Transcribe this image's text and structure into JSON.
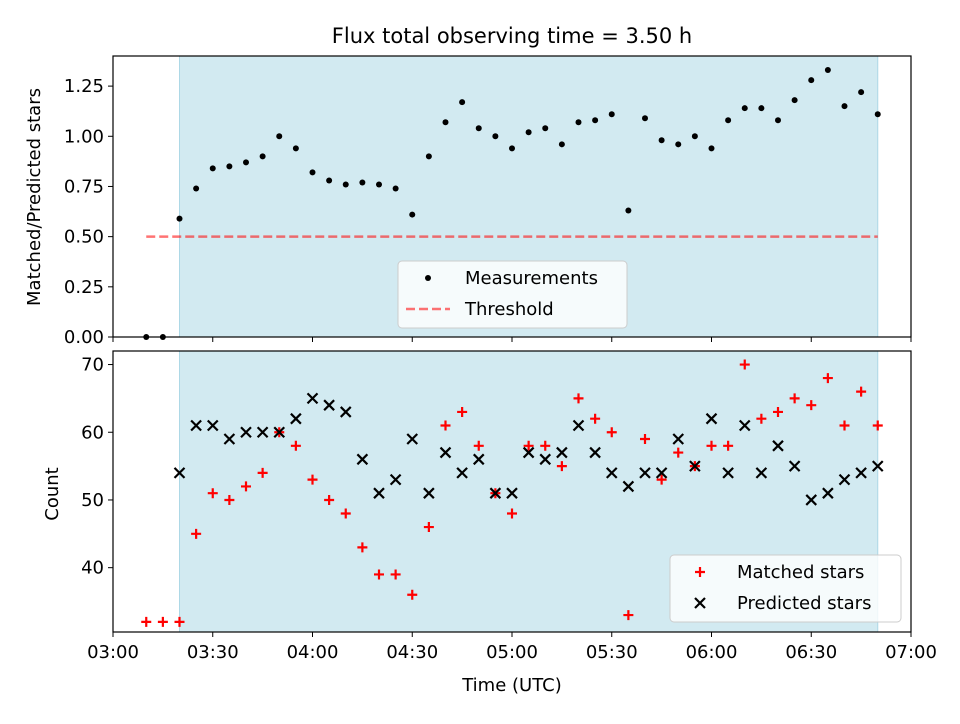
{
  "title": "Flux total observing time = 3.50 h",
  "colors": {
    "observing_span": "#add8e6",
    "measurement": "#000000",
    "threshold": "#ff0000",
    "matched": "#ff0000",
    "predicted": "#000000"
  },
  "chart_data": [
    {
      "type": "scatter",
      "panel": "top",
      "ylabel": "Matched/Predicted stars",
      "xlabel": "",
      "xlim": [
        "03:00",
        "07:00"
      ],
      "ylim": [
        0.0,
        1.4
      ],
      "yticks": [
        "0.00",
        "0.25",
        "0.50",
        "0.75",
        "1.00",
        "1.25"
      ],
      "shaded_span": [
        "03:20",
        "06:50"
      ],
      "legend": {
        "placement": "lower center",
        "entries": [
          "Measurements",
          "Threshold"
        ]
      },
      "threshold": {
        "name": "Threshold",
        "value": 0.5,
        "x_range": [
          "03:10",
          "06:50"
        ]
      },
      "series": [
        {
          "name": "Measurements",
          "x": [
            "03:10",
            "03:15",
            "03:20",
            "03:25",
            "03:30",
            "03:35",
            "03:40",
            "03:45",
            "03:50",
            "03:55",
            "04:00",
            "04:05",
            "04:10",
            "04:15",
            "04:20",
            "04:25",
            "04:30",
            "04:35",
            "04:40",
            "04:45",
            "04:50",
            "04:55",
            "05:00",
            "05:05",
            "05:10",
            "05:15",
            "05:20",
            "05:25",
            "05:30",
            "05:35",
            "05:40",
            "05:45",
            "05:50",
            "05:55",
            "06:00",
            "06:05",
            "06:10",
            "06:15",
            "06:20",
            "06:25",
            "06:30",
            "06:35",
            "06:40",
            "06:45",
            "06:50"
          ],
          "y": [
            0.0,
            0.0,
            0.59,
            0.74,
            0.84,
            0.85,
            0.87,
            0.9,
            1.0,
            0.94,
            0.82,
            0.78,
            0.76,
            0.77,
            0.76,
            0.74,
            0.61,
            0.9,
            1.07,
            1.17,
            1.04,
            1.0,
            0.94,
            1.02,
            1.04,
            0.96,
            1.07,
            1.08,
            1.11,
            0.63,
            1.09,
            0.98,
            0.96,
            1.0,
            0.94,
            1.08,
            1.14,
            1.14,
            1.08,
            1.18,
            1.28,
            1.33,
            1.15,
            1.22,
            1.11
          ]
        }
      ]
    },
    {
      "type": "scatter",
      "panel": "bottom",
      "ylabel": "Count",
      "xlabel": "Time (UTC)",
      "xlim": [
        "03:00",
        "07:00"
      ],
      "ylim": [
        30.5,
        72
      ],
      "yticks": [
        "40",
        "50",
        "60",
        "70"
      ],
      "xticks": [
        "03:00",
        "03:30",
        "04:00",
        "04:30",
        "05:00",
        "05:30",
        "06:00",
        "06:30",
        "07:00"
      ],
      "shaded_span": [
        "03:20",
        "06:50"
      ],
      "legend": {
        "placement": "lower right",
        "entries": [
          "Matched stars",
          "Predicted stars"
        ]
      },
      "series": [
        {
          "name": "Matched stars",
          "marker": "+",
          "x": [
            "03:10",
            "03:15",
            "03:20",
            "03:25",
            "03:30",
            "03:35",
            "03:40",
            "03:45",
            "03:50",
            "03:55",
            "04:00",
            "04:05",
            "04:10",
            "04:15",
            "04:20",
            "04:25",
            "04:30",
            "04:35",
            "04:40",
            "04:45",
            "04:50",
            "04:55",
            "05:00",
            "05:05",
            "05:10",
            "05:15",
            "05:20",
            "05:25",
            "05:30",
            "05:35",
            "05:40",
            "05:45",
            "05:50",
            "05:55",
            "06:00",
            "06:05",
            "06:10",
            "06:15",
            "06:20",
            "06:25",
            "06:30",
            "06:35",
            "06:40",
            "06:45",
            "06:50"
          ],
          "y": [
            32,
            32,
            32,
            45,
            51,
            50,
            52,
            54,
            60,
            58,
            53,
            50,
            48,
            43,
            39,
            39,
            36,
            46,
            61,
            63,
            58,
            51,
            48,
            58,
            58,
            55,
            65,
            62,
            60,
            33,
            59,
            53,
            57,
            55,
            58,
            58,
            70,
            62,
            63,
            65,
            64,
            68,
            61,
            66,
            61
          ]
        },
        {
          "name": "Predicted stars",
          "marker": "x",
          "x": [
            "03:20",
            "03:25",
            "03:30",
            "03:35",
            "03:40",
            "03:45",
            "03:50",
            "03:55",
            "04:00",
            "04:05",
            "04:10",
            "04:15",
            "04:20",
            "04:25",
            "04:30",
            "04:35",
            "04:40",
            "04:45",
            "04:50",
            "04:55",
            "05:00",
            "05:05",
            "05:10",
            "05:15",
            "05:20",
            "05:25",
            "05:30",
            "05:35",
            "05:40",
            "05:45",
            "05:50",
            "05:55",
            "06:00",
            "06:05",
            "06:10",
            "06:15",
            "06:20",
            "06:25",
            "06:30",
            "06:35",
            "06:40",
            "06:45",
            "06:50"
          ],
          "y": [
            54,
            61,
            61,
            59,
            60,
            60,
            60,
            62,
            65,
            64,
            63,
            56,
            51,
            53,
            59,
            51,
            57,
            54,
            56,
            51,
            51,
            57,
            56,
            57,
            61,
            57,
            54,
            52,
            54,
            54,
            59,
            55,
            62,
            54,
            61,
            54,
            58,
            55,
            50,
            51,
            53,
            54,
            55
          ]
        }
      ]
    }
  ]
}
